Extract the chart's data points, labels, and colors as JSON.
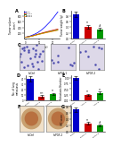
{
  "line_chart": {
    "xlabel": "Time (d)",
    "ylabel": "Tumor volume\n(mm³)",
    "series": [
      {
        "label": "shCtrl",
        "color": "#0000ff",
        "values": [
          50,
          85,
          140,
          210,
          310,
          440,
          590,
          760,
          950
        ]
      },
      {
        "label": "shPGF-1",
        "color": "#ff0000",
        "values": [
          50,
          75,
          110,
          155,
          195,
          235,
          270,
          305,
          340
        ]
      },
      {
        "label": "shPGF-2",
        "color": "#008800",
        "values": [
          50,
          70,
          105,
          145,
          180,
          215,
          250,
          280,
          315
        ]
      },
      {
        "label": "shPGF-3",
        "color": "#ff8800",
        "values": [
          50,
          68,
          100,
          138,
          172,
          205,
          235,
          265,
          295
        ]
      }
    ],
    "x": [
      0,
      3,
      6,
      9,
      12,
      15,
      18,
      21,
      24
    ]
  },
  "bar_b": {
    "ylabel": "Tumor weight (g)",
    "categories": [
      "shCtrl",
      "shPGF-1",
      "shPGF-2"
    ],
    "values": [
      0.85,
      0.42,
      0.32
    ],
    "errors": [
      0.09,
      0.07,
      0.05
    ],
    "colors": [
      "#0000cc",
      "#cc0000",
      "#009900"
    ],
    "stars": [
      "",
      "**",
      "#"
    ]
  },
  "bar_d": {
    "ylabel": "No. of lung\nmetastasis",
    "categories": [
      "shCtrl",
      "shPGF-1",
      "shPGF-2"
    ],
    "values": [
      40,
      7,
      11
    ],
    "errors": [
      5,
      2,
      2
    ],
    "colors": [
      "#0000cc",
      "#cc0000",
      "#009900"
    ],
    "stars": [
      "",
      "***",
      "**"
    ]
  },
  "bar_e": {
    "ylabel": "Metastasis Number",
    "categories": [
      "shCtrl",
      "shPGF-1",
      "shPGF-2"
    ],
    "values": [
      1.0,
      0.25,
      0.33
    ],
    "errors": [
      0.09,
      0.04,
      0.05
    ],
    "colors": [
      "#0000cc",
      "#cc0000",
      "#009900"
    ],
    "stars": [
      "",
      "**",
      "**"
    ]
  },
  "bar_g": {
    "ylabel": "IHC score",
    "categories": [
      "shCtrl",
      "shPGF-1",
      "shPGF-2"
    ],
    "values": [
      0.7,
      0.26,
      0.2
    ],
    "errors": [
      0.08,
      0.04,
      0.03
    ],
    "colors": [
      "#0000cc",
      "#cc0000",
      "#009900"
    ],
    "stars": [
      "",
      "**",
      "#"
    ]
  },
  "micro_bg": "#ddd8e8",
  "micro_dot_color": "#4444aa",
  "ihc_bg": "#f0e0c8",
  "ihc_circle_outer": "#c8a070",
  "ihc_circle_inner": "#b87040",
  "bg_color": "#ffffff"
}
